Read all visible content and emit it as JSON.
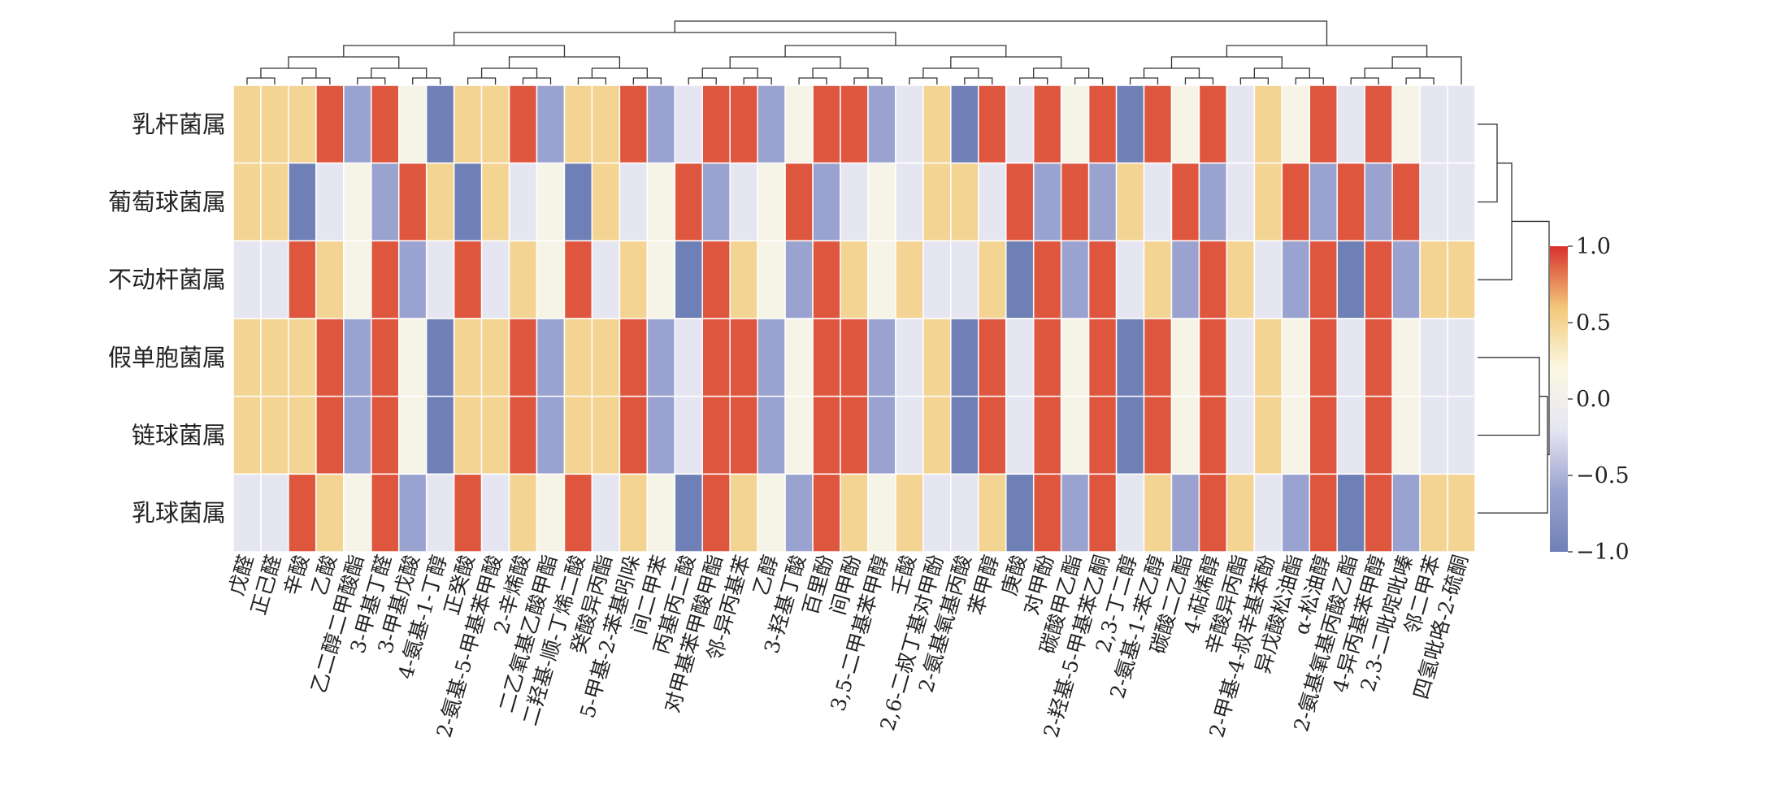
{
  "chart_data": {
    "type": "heatmap",
    "title": "",
    "xlabel": "",
    "ylabel": "",
    "rows": [
      "乳杆菌属",
      "葡萄球菌属",
      "不动杆菌属",
      "假单胞菌属",
      "链球菌属",
      "乳球菌属"
    ],
    "columns": [
      "戊醛",
      "正己醛",
      "辛酸",
      "乙酸",
      "乙二醇二甲酸酯",
      "3-甲基丁醛",
      "3-甲基戊酸",
      "4-氨基-1-丁醇",
      "正癸酸",
      "2-氨基-5-甲基苯甲酸",
      "2-辛烯酸",
      "二乙氧基乙酸甲酯",
      "二羟基-顺-丁烯二酸",
      "癸酸异丙酯",
      "5-甲基-2-苯基吲哚",
      "间二甲苯",
      "丙基丙二酸",
      "对甲基苯甲酸甲酯",
      "邻-异丙基苯",
      "乙醇",
      "3-羟基丁酸",
      "百里酚",
      "间甲酚",
      "3,5-二甲基苯甲醇",
      "壬酸",
      "2,6-二叔丁基对甲酚",
      "2-氨基氧基丙酸",
      "苯甲醇",
      "庚酸",
      "对甲酚",
      "碳酸甲乙酯",
      "2-羟基-5-甲基苯乙酮",
      "2,3-丁二醇",
      "2-氨基-1-苯乙醇",
      "碳酸二乙酯",
      "4-萜烯醇",
      "辛酸异丙酯",
      "2-甲基-4-叔辛基苯酚",
      "异戊酸松油酯",
      "α-松油醇",
      "2-氨基氧基丙酸乙酯",
      "4-异丙基苯甲醇",
      "2,3-二吡啶吡嗪",
      "邻二甲苯",
      "四氢吡咯-2-硫酮"
    ],
    "values": [
      [
        0.5,
        0.5,
        0.5,
        0.9,
        -0.6,
        0.9,
        0.1,
        -1.0,
        0.5,
        0.5,
        0.9,
        -0.6,
        0.5,
        0.5,
        0.9,
        -0.6,
        -0.2,
        0.9,
        0.9,
        -0.6,
        0.1,
        0.9,
        0.9,
        -0.6,
        -0.2,
        0.5,
        -1.0,
        0.9,
        -0.2,
        0.9,
        0.1,
        0.9,
        -1.0,
        0.9,
        0.1,
        0.9,
        -0.2,
        0.5,
        0.1,
        0.9,
        -0.2,
        0.9,
        0.1,
        -0.2,
        -0.2
      ],
      [
        0.5,
        0.5,
        -1.0,
        -0.2,
        0.1,
        -0.6,
        0.9,
        0.5,
        -1.0,
        0.5,
        -0.2,
        0.1,
        -1.0,
        0.5,
        -0.2,
        0.1,
        0.9,
        -0.6,
        -0.2,
        0.1,
        0.9,
        -0.6,
        -0.2,
        0.1,
        -0.2,
        0.5,
        0.5,
        -0.2,
        0.9,
        -0.6,
        0.9,
        -0.6,
        0.5,
        -0.2,
        0.9,
        -0.6,
        -0.2,
        0.5,
        0.9,
        -0.6,
        0.9,
        -0.6,
        0.9,
        -0.2,
        -0.2
      ],
      [
        -0.2,
        -0.2,
        0.9,
        0.5,
        0.1,
        0.9,
        -0.6,
        -0.2,
        0.9,
        -0.2,
        0.5,
        0.1,
        0.9,
        -0.2,
        0.5,
        0.1,
        -1.0,
        0.9,
        0.5,
        0.1,
        -0.6,
        0.9,
        0.5,
        0.1,
        0.5,
        -0.2,
        -0.2,
        0.5,
        -1.0,
        0.9,
        -0.6,
        0.9,
        -0.2,
        0.5,
        -0.6,
        0.9,
        0.5,
        -0.2,
        -0.6,
        0.9,
        -1.0,
        0.9,
        -0.6,
        0.5,
        0.5
      ],
      [
        0.5,
        0.5,
        0.5,
        0.9,
        -0.6,
        0.9,
        0.1,
        -1.0,
        0.5,
        0.5,
        0.9,
        -0.6,
        0.5,
        0.5,
        0.9,
        -0.6,
        -0.2,
        0.9,
        0.9,
        -0.6,
        0.1,
        0.9,
        0.9,
        -0.6,
        -0.2,
        0.5,
        -1.0,
        0.9,
        -0.2,
        0.9,
        0.1,
        0.9,
        -1.0,
        0.9,
        0.1,
        0.9,
        -0.2,
        0.5,
        0.1,
        0.9,
        -0.2,
        0.9,
        0.1,
        -0.2,
        -0.2
      ],
      [
        0.5,
        0.5,
        0.5,
        0.9,
        -0.6,
        0.9,
        0.1,
        -1.0,
        0.5,
        0.5,
        0.9,
        -0.6,
        0.5,
        0.5,
        0.9,
        -0.6,
        -0.2,
        0.9,
        0.9,
        -0.6,
        0.1,
        0.9,
        0.9,
        -0.6,
        -0.2,
        0.5,
        -1.0,
        0.9,
        -0.2,
        0.9,
        0.1,
        0.9,
        -1.0,
        0.9,
        0.1,
        0.9,
        -0.2,
        0.5,
        0.1,
        0.9,
        -0.2,
        0.9,
        0.1,
        -0.2,
        -0.2
      ],
      [
        -0.2,
        -0.2,
        0.9,
        0.5,
        0.1,
        0.9,
        -0.6,
        -0.2,
        0.9,
        -0.2,
        0.5,
        0.1,
        0.9,
        -0.2,
        0.5,
        0.1,
        -1.0,
        0.9,
        0.5,
        0.1,
        -0.6,
        0.9,
        0.5,
        0.1,
        0.5,
        -0.2,
        -0.2,
        0.5,
        -1.0,
        0.9,
        -0.6,
        0.9,
        -0.2,
        0.5,
        -0.6,
        0.9,
        0.5,
        -0.2,
        -0.6,
        0.9,
        -1.0,
        0.9,
        -0.6,
        0.5,
        0.5
      ]
    ],
    "zlim": [
      -1.0,
      1.0
    ],
    "colorbar": {
      "ticks": [
        1.0,
        0.5,
        0.0,
        -0.5,
        -1.0
      ],
      "tick_labels": [
        "1.0",
        "0.5",
        "0.0",
        "−0.5",
        "−1.0"
      ],
      "colors": [
        "#d8302b",
        "#f2c879",
        "#fbf8e2",
        "#e6e6f2",
        "#9aa3cf",
        "#6f80b6"
      ]
    },
    "dendrograms": {
      "rows": "right",
      "columns": "top"
    },
    "grid": false,
    "legend": "right"
  }
}
